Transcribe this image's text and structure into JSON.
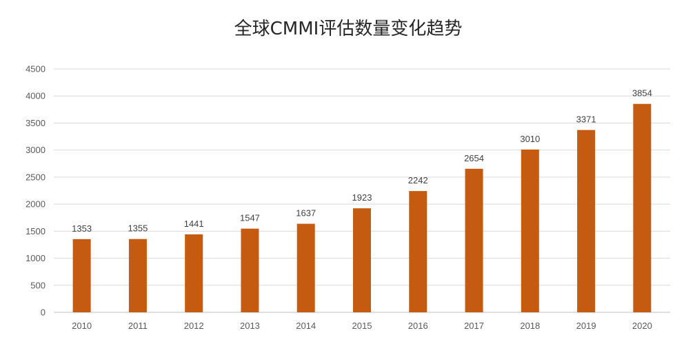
{
  "chart_data": {
    "type": "bar",
    "title": "全球CMMI评估数量变化趋势",
    "xlabel": "",
    "ylabel": "",
    "categories": [
      "2010",
      "2011",
      "2012",
      "2013",
      "2014",
      "2015",
      "2016",
      "2017",
      "2018",
      "2019",
      "2020"
    ],
    "values": [
      1353,
      1355,
      1441,
      1547,
      1637,
      1923,
      2242,
      2654,
      3010,
      3371,
      3854
    ],
    "ylim": [
      0,
      4500
    ],
    "yticks": [
      0,
      500,
      1000,
      1500,
      2000,
      2500,
      3000,
      3500,
      4000,
      4500
    ],
    "grid": true,
    "legend": "none",
    "data_labels": true,
    "bar_color": "#c55a11"
  }
}
